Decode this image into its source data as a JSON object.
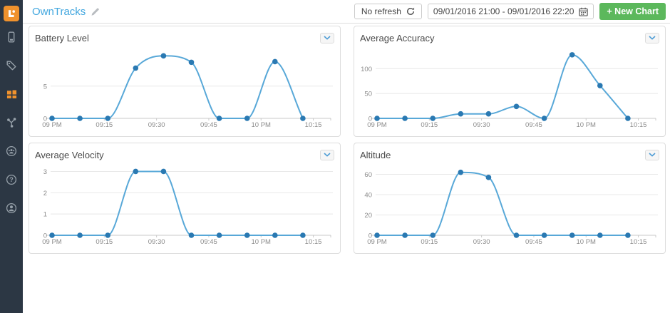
{
  "sidebar": {
    "items": [
      {
        "id": "devices",
        "icon": "device-icon",
        "active": false
      },
      {
        "id": "tags",
        "icon": "tag-icon",
        "active": false
      },
      {
        "id": "dashboards",
        "icon": "dashboard-grid-icon",
        "active": true
      },
      {
        "id": "workflows",
        "icon": "workflow-icon",
        "active": false
      },
      {
        "id": "community",
        "icon": "community-icon",
        "active": false
      },
      {
        "id": "help",
        "icon": "help-icon",
        "active": false
      },
      {
        "id": "account",
        "icon": "account-icon",
        "active": false
      }
    ]
  },
  "header": {
    "title": "OwnTracks",
    "refresh_label": "No refresh",
    "date_range": "09/01/2016 21:00 - 09/01/2016 22:20",
    "new_chart_label": "+ New Chart"
  },
  "axis": {
    "x_range": [
      0,
      80
    ],
    "x_ticks": [
      {
        "m": 0,
        "label": "09 PM"
      },
      {
        "m": 15,
        "label": "09:15"
      },
      {
        "m": 30,
        "label": "09:30"
      },
      {
        "m": 45,
        "label": "09:45"
      },
      {
        "m": 60,
        "label": "10 PM"
      },
      {
        "m": 75,
        "label": "10:15"
      }
    ]
  },
  "chart_data": [
    {
      "type": "line",
      "title": "Battery Level",
      "x_times": [
        "21:00",
        "21:08",
        "21:16",
        "21:24",
        "21:32",
        "21:40",
        "21:48",
        "21:56",
        "22:04",
        "22:12"
      ],
      "x_minutes": [
        0,
        8,
        16,
        24,
        32,
        40,
        48,
        56,
        64,
        72
      ],
      "values": [
        0,
        0,
        0,
        7.8,
        9.7,
        8.7,
        0,
        0,
        8.8,
        0
      ],
      "y_ticks": [
        0,
        5
      ],
      "y_max": 10.4
    },
    {
      "type": "line",
      "title": "Average Accuracy",
      "x_times": [
        "21:00",
        "21:08",
        "21:16",
        "21:24",
        "21:32",
        "21:40",
        "21:48",
        "21:56",
        "22:04",
        "22:12"
      ],
      "x_minutes": [
        0,
        8,
        16,
        24,
        32,
        40,
        48,
        56,
        64,
        72
      ],
      "values": [
        0,
        0,
        0,
        9,
        9,
        24,
        0,
        128,
        66,
        0
      ],
      "y_ticks": [
        0,
        50,
        100
      ],
      "y_max": 135
    },
    {
      "type": "line",
      "title": "Average Velocity",
      "x_times": [
        "21:00",
        "21:08",
        "21:16",
        "21:24",
        "21:32",
        "21:40",
        "21:48",
        "21:56",
        "22:04",
        "22:12"
      ],
      "x_minutes": [
        0,
        8,
        16,
        24,
        32,
        40,
        48,
        56,
        64,
        72
      ],
      "values": [
        0,
        0,
        0,
        3,
        3,
        0,
        0,
        0,
        0,
        0
      ],
      "y_ticks": [
        0,
        1,
        2,
        3
      ],
      "y_max": 3.15
    },
    {
      "type": "line",
      "title": "Altitude",
      "x_times": [
        "21:00",
        "21:08",
        "21:16",
        "21:24",
        "21:32",
        "21:40",
        "21:48",
        "21:56",
        "22:04",
        "22:12"
      ],
      "x_minutes": [
        0,
        8,
        16,
        24,
        32,
        40,
        48,
        56,
        64,
        72
      ],
      "values": [
        0,
        0,
        0,
        62,
        57,
        0,
        0,
        0,
        0,
        0
      ],
      "y_ticks": [
        0,
        20,
        40,
        60
      ],
      "y_max": 66
    }
  ],
  "colors": {
    "line": "#58a8d8",
    "point": "#2a79b2",
    "grid": "#e8e8e8",
    "axis": "#c9c9c9",
    "accent_orange": "#f0922d",
    "title_blue": "#42a7df",
    "button_green": "#5cb85c",
    "sidebar_bg": "#2c3744",
    "sidebar_icon": "#97a1aa"
  }
}
